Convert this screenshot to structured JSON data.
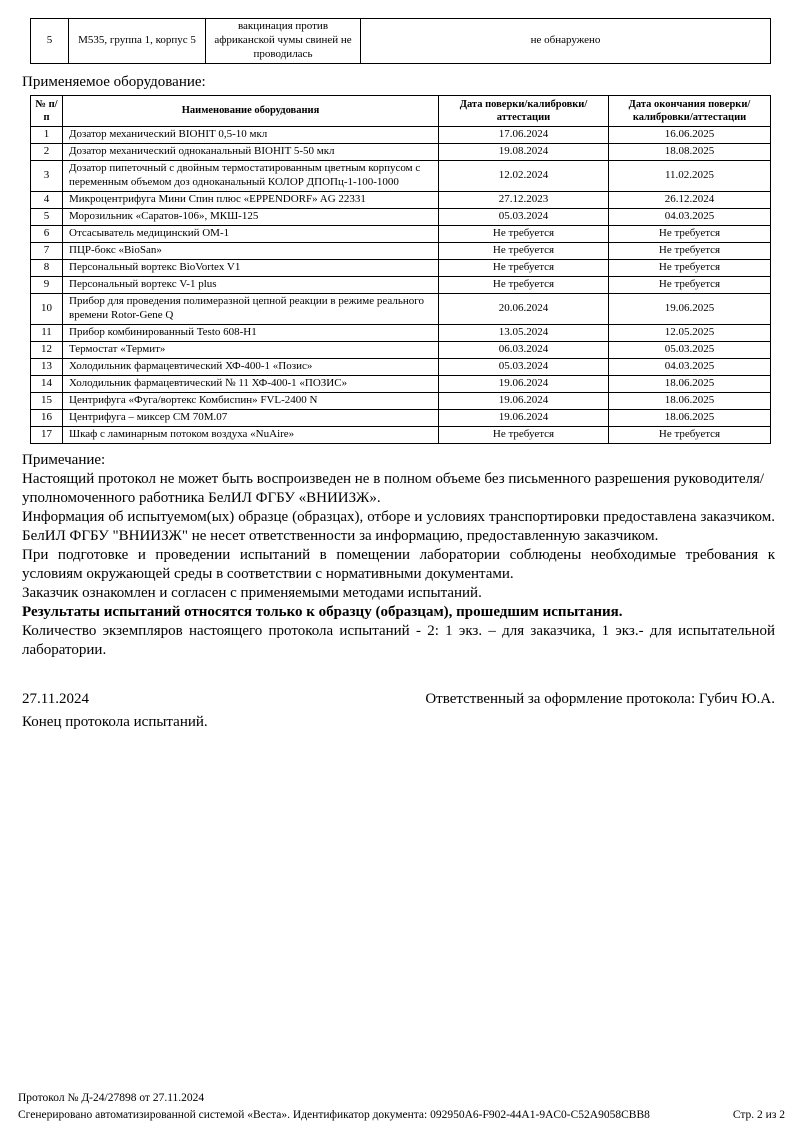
{
  "top_table": {
    "row": {
      "num": "5",
      "sample": "М535, группа 1, корпус 5",
      "vaccination": "вакцинация против африканской чумы свиней не проводилась",
      "result": "не обнаружено"
    }
  },
  "equipment": {
    "heading": "Применяемое оборудование:",
    "columns": [
      "№ п/п",
      "Наименование оборудования",
      "Дата поверки/калибровки/аттестации",
      "Дата окончания поверки/калибровки/аттестации"
    ],
    "rows": [
      [
        "1",
        "Дозатор механический BIOHIT 0,5-10 мкл",
        "17.06.2024",
        "16.06.2025"
      ],
      [
        "2",
        "Дозатор механический одноканальный BIOHIT 5-50 мкл",
        "19.08.2024",
        "18.08.2025"
      ],
      [
        "3",
        "Дозатор пипеточный с двойным термостатированным цветным корпусом с переменным объемом доз одноканальный КОЛОР ДПОПц-1-100-1000",
        "12.02.2024",
        "11.02.2025"
      ],
      [
        "4",
        "Микроцентрифуга Мини Спин плюс «EPPENDORF» AG 22331",
        "27.12.2023",
        "26.12.2024"
      ],
      [
        "5",
        "Морозильник «Саратов-106», МКШ-125",
        "05.03.2024",
        "04.03.2025"
      ],
      [
        "6",
        "Отсасыватель медицинский ОМ-1",
        "Не требуется",
        "Не требуется"
      ],
      [
        "7",
        "ПЦР-бокс «BioSan»",
        "Не требуется",
        "Не требуется"
      ],
      [
        "8",
        "Персональный вортекс BioVortex V1",
        "Не требуется",
        "Не требуется"
      ],
      [
        "9",
        "Персональный вортекс V-1 plus",
        "Не требуется",
        "Не требуется"
      ],
      [
        "10",
        "Прибор для проведения полимеразной цепной реакции в режиме реального времени Rotor-Gene Q",
        "20.06.2024",
        "19.06.2025"
      ],
      [
        "11",
        "Прибор комбинированный Testo 608-H1",
        "13.05.2024",
        "12.05.2025"
      ],
      [
        "12",
        "Термостат «Термит»",
        "06.03.2024",
        "05.03.2025"
      ],
      [
        "13",
        "Холодильник фармацевтический ХФ-400-1 «Позис»",
        "05.03.2024",
        "04.03.2025"
      ],
      [
        "14",
        "Холодильник фармацевтический № 11 ХФ-400-1 «ПОЗИС»",
        "19.06.2024",
        "18.06.2025"
      ],
      [
        "15",
        "Центрифуга «Фуга/вортекс Комбиспин» FVL-2400 N",
        "19.06.2024",
        "18.06.2025"
      ],
      [
        "16",
        "Центрифуга – миксер СМ 70М.07",
        "19.06.2024",
        "18.06.2025"
      ],
      [
        "17",
        "Шкаф с ламинарным потоком воздуха «NuAire»",
        "Не требуется",
        "Не требуется"
      ]
    ]
  },
  "notes": {
    "heading": "Примечание:",
    "paragraphs": [
      {
        "text": "Настоящий протокол не может быть воспроизведен не в полном объеме без письменного разрешения руководителя/уполномоченного работника БелИЛ ФГБУ «ВНИИЗЖ».",
        "bold": false,
        "justify": false
      },
      {
        "text": "Информация об испытуемом(ых) образце (образцах), отборе и условиях транспортировки предоставлена заказчиком. БелИЛ ФГБУ \"ВНИИЗЖ\" не несет ответственности за информацию, предоставленную заказчиком.",
        "bold": false,
        "justify": true
      },
      {
        "text": "При подготовке и проведении испытаний в помещении лаборатории соблюдены необходимые требования к условиям окружающей среды в соответствии с нормативными документами.",
        "bold": false,
        "justify": true
      },
      {
        "text": "Заказчик ознакомлен и согласен с применяемыми методами испытаний.",
        "bold": false,
        "justify": false
      },
      {
        "text": "Результаты испытаний относятся только к образцу (образцам), прошедшим испытания.",
        "bold": true,
        "justify": false
      },
      {
        "text": "Количество экземпляров настоящего протокола испытаний - 2: 1 экз. – для заказчика, 1 экз.- для испытательной лаборатории.",
        "bold": false,
        "justify": true
      }
    ]
  },
  "signoff": {
    "date": "27.11.2024",
    "responsible": "Ответственный за оформление протокола: Губич Ю.А.",
    "end": "Конец протокола испытаний."
  },
  "footer": {
    "line1": "Протокол № Д-24/27898 от 27.11.2024",
    "line2": "Сгенерировано автоматизированной системой «Веста». Идентификатор документа: 092950A6-F902-44A1-9AC0-C52A9058CBB8",
    "page": "Стр. 2 из 2"
  }
}
